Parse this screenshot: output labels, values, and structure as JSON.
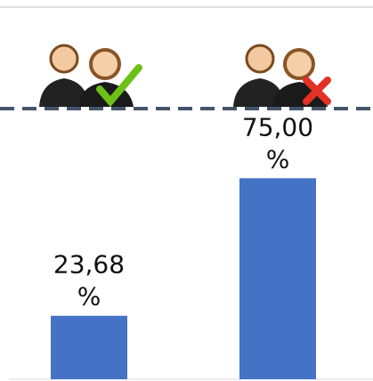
{
  "chart_data": {
    "type": "bar",
    "values": [
      23.68,
      75.0
    ],
    "value_labels": [
      "23,68 %",
      "75,00 %"
    ],
    "color": "#4472c4"
  }
}
